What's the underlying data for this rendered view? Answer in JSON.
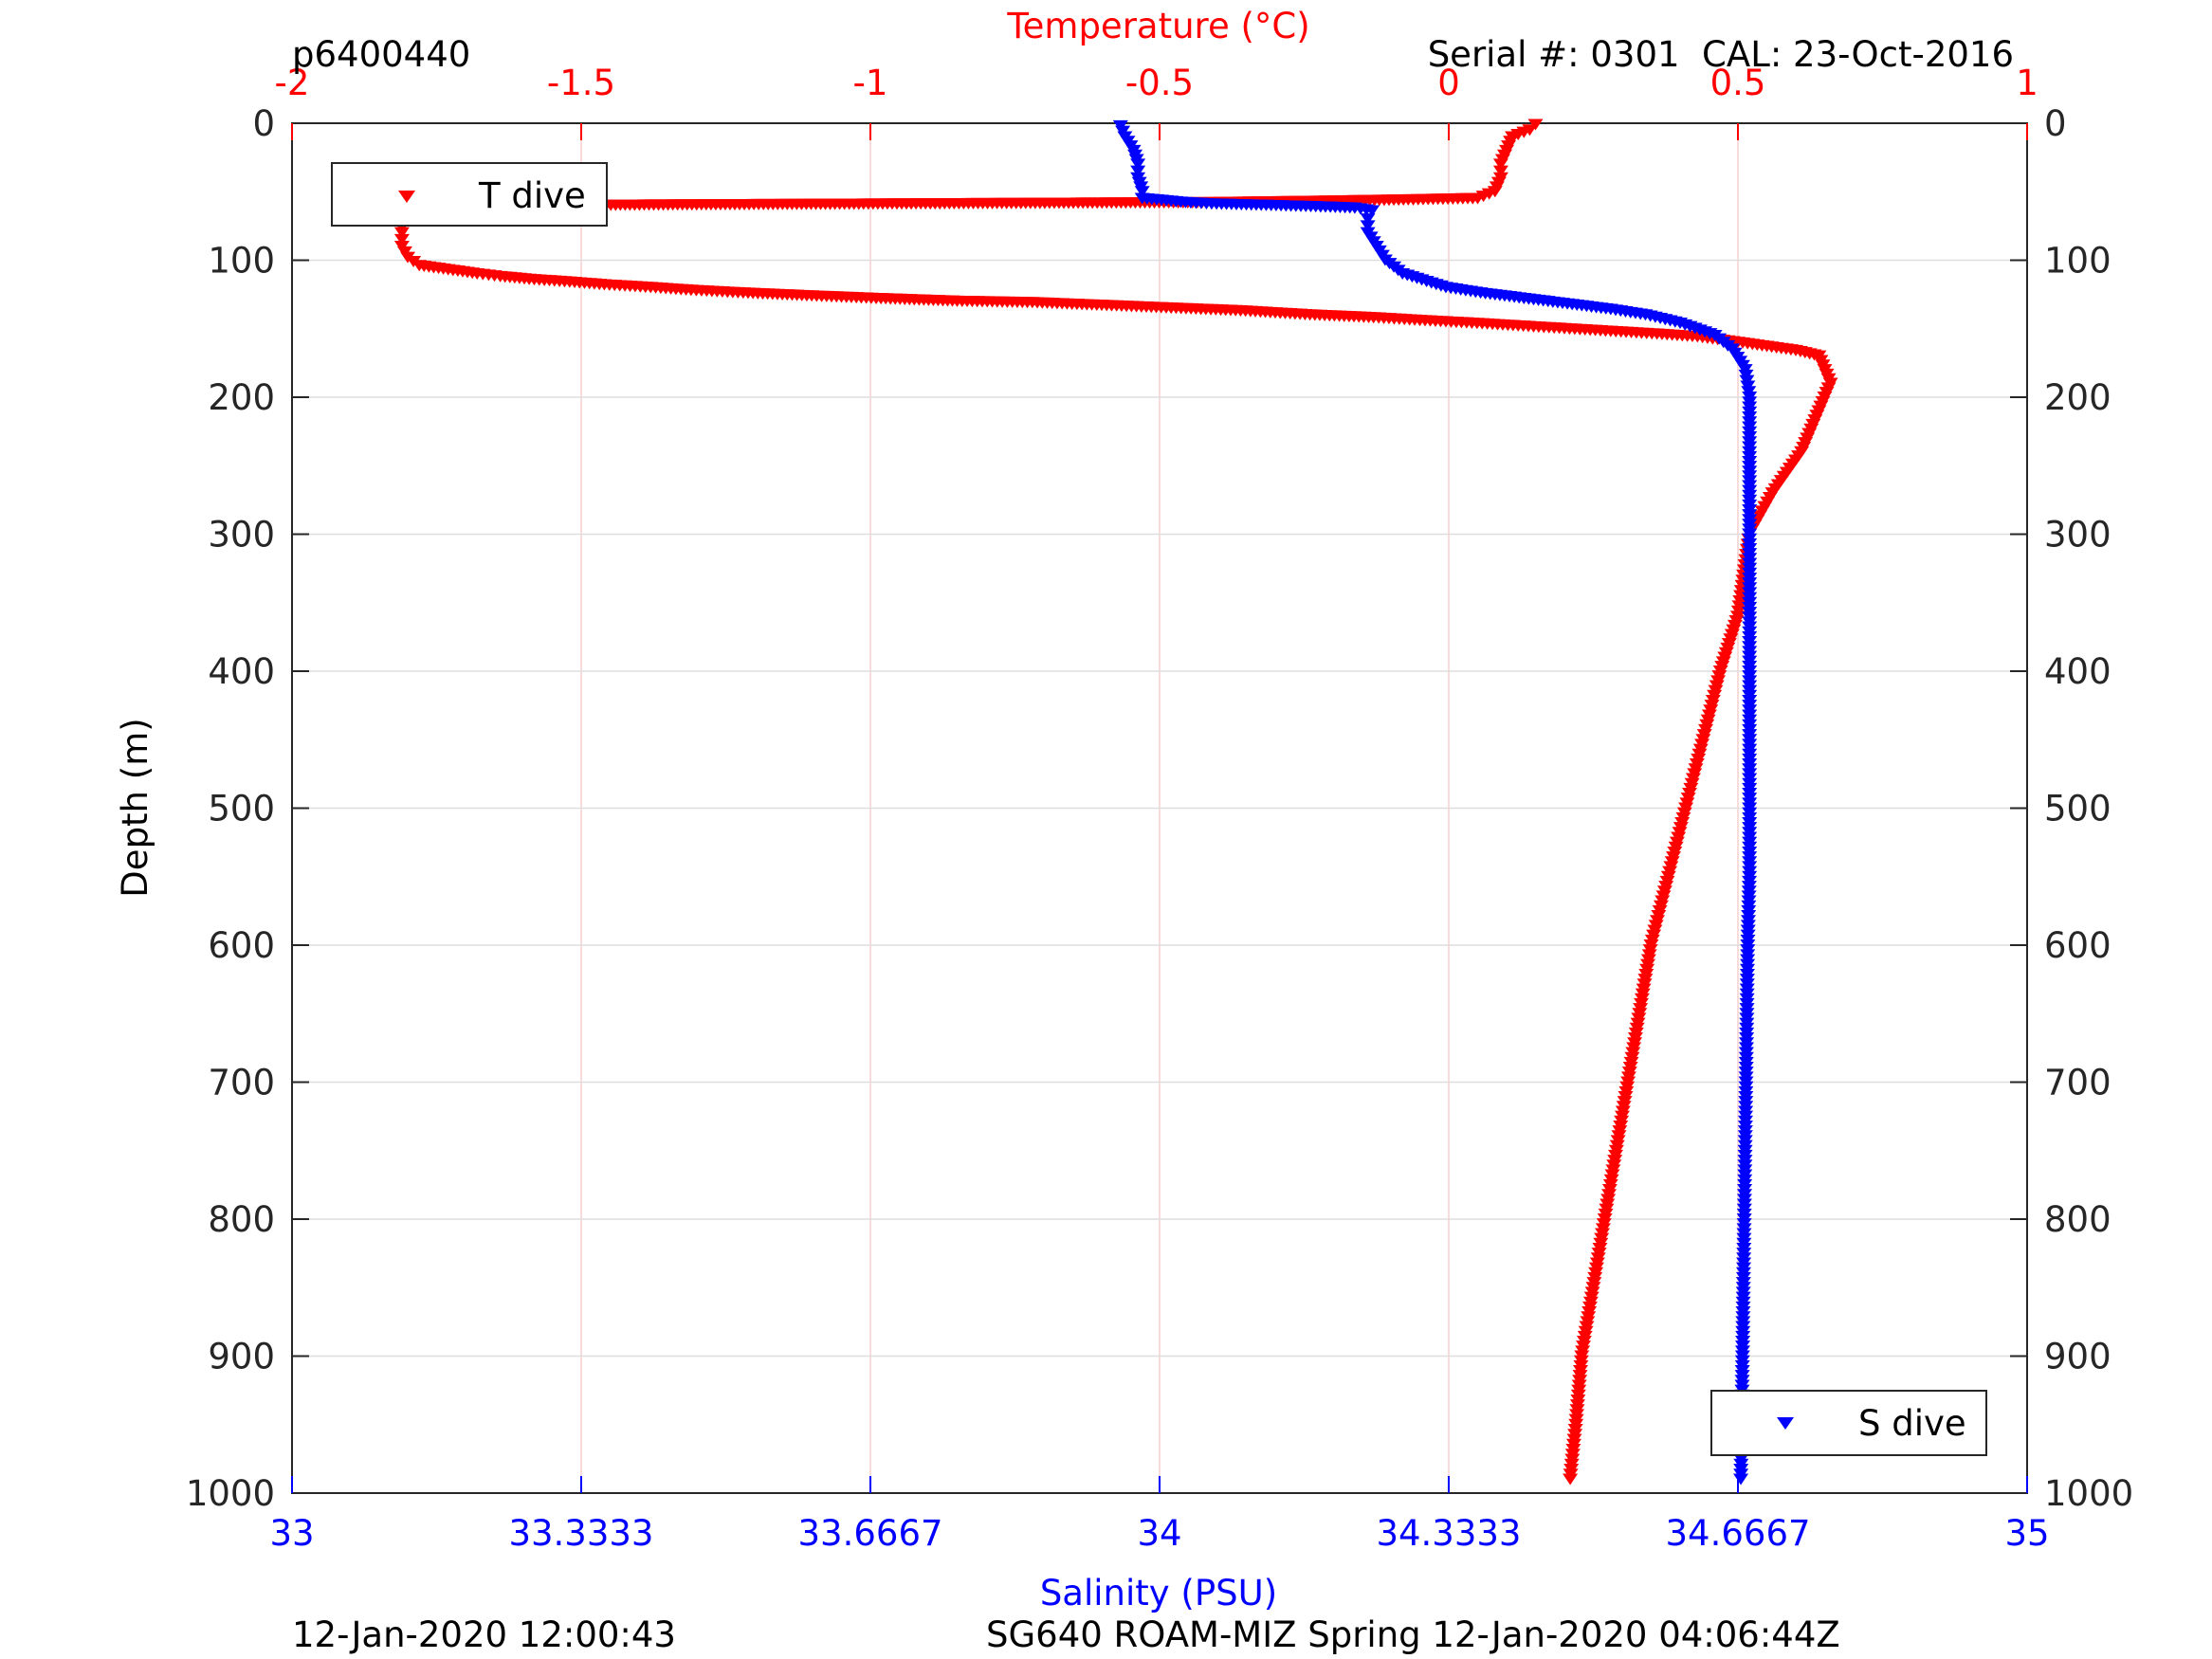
{
  "chart_data": {
    "type": "scatter",
    "header": {
      "dive_id": "p6400440",
      "serial": "Serial #: 0301  CAL: 23-Oct-2016"
    },
    "footer": {
      "left": "12-Jan-2020 12:00:43",
      "right": "SG640 ROAM-MIZ Spring 12-Jan-2020 04:06:44Z"
    },
    "y_axis": {
      "label": "Depth (m)",
      "range": [
        0,
        1000
      ],
      "reversed": true,
      "ticks": [
        "0",
        "100",
        "200",
        "300",
        "400",
        "500",
        "600",
        "700",
        "800",
        "900",
        "1000"
      ]
    },
    "x_axis_top": {
      "label": "Temperature (°C)",
      "color": "#ff0000",
      "range": [
        -2,
        1
      ],
      "ticks": [
        "-2",
        "-1.5",
        "-1",
        "-0.5",
        "0",
        "0.5",
        "1"
      ]
    },
    "x_axis_bottom": {
      "label": "Salinity (PSU)",
      "color": "#0000ff",
      "range": [
        33,
        35
      ],
      "ticks": [
        "33",
        "33.3333",
        "33.6667",
        "34",
        "34.3333",
        "34.6667",
        "35"
      ]
    },
    "grid": true,
    "legend": [
      {
        "name": "T dive",
        "color": "#ff0000",
        "marker": "triangle-down",
        "placement": "top-left"
      },
      {
        "name": "S dive",
        "color": "#0000ff",
        "marker": "triangle-down",
        "placement": "bottom-right"
      }
    ],
    "series": [
      {
        "name": "T dive",
        "axis": "top",
        "color": "#ff0000",
        "points": [
          [
            0.15,
            1
          ],
          [
            0.14,
            5
          ],
          [
            0.11,
            10
          ],
          [
            0.1,
            20
          ],
          [
            0.09,
            30
          ],
          [
            0.09,
            40
          ],
          [
            0.08,
            50
          ],
          [
            0.05,
            55
          ],
          [
            -0.07,
            56
          ],
          [
            -0.22,
            57
          ],
          [
            -0.41,
            58
          ],
          [
            -1.49,
            60
          ],
          [
            -1.65,
            60
          ],
          [
            -1.74,
            62
          ],
          [
            -1.79,
            62
          ],
          [
            -1.8,
            65
          ],
          [
            -1.81,
            72
          ],
          [
            -1.81,
            80
          ],
          [
            -1.81,
            90
          ],
          [
            -1.8,
            98
          ],
          [
            -1.78,
            104
          ],
          [
            -1.73,
            107
          ],
          [
            -1.68,
            110
          ],
          [
            -1.64,
            112
          ],
          [
            -1.59,
            114
          ],
          [
            -1.52,
            116
          ],
          [
            -1.46,
            118
          ],
          [
            -1.38,
            120
          ],
          [
            -1.31,
            122
          ],
          [
            -1.22,
            124
          ],
          [
            -1.11,
            126
          ],
          [
            -0.99,
            128
          ],
          [
            -0.85,
            130
          ],
          [
            -0.72,
            131
          ],
          [
            -0.6,
            133
          ],
          [
            -0.48,
            135
          ],
          [
            -0.36,
            137
          ],
          [
            -0.24,
            140
          ],
          [
            -0.13,
            142
          ],
          [
            -0.05,
            144
          ],
          [
            0.04,
            146
          ],
          [
            0.12,
            148
          ],
          [
            0.2,
            150
          ],
          [
            0.28,
            152
          ],
          [
            0.36,
            154
          ],
          [
            0.43,
            156
          ],
          [
            0.5,
            160
          ],
          [
            0.55,
            163
          ],
          [
            0.6,
            166
          ],
          [
            0.64,
            170
          ],
          [
            0.65,
            180
          ],
          [
            0.66,
            190
          ],
          [
            0.64,
            210
          ],
          [
            0.61,
            240
          ],
          [
            0.56,
            270
          ],
          [
            0.52,
            300
          ],
          [
            0.51,
            330
          ],
          [
            0.5,
            360
          ],
          [
            0.47,
            400
          ],
          [
            0.44,
            450
          ],
          [
            0.41,
            500
          ],
          [
            0.38,
            550
          ],
          [
            0.35,
            600
          ],
          [
            0.33,
            650
          ],
          [
            0.31,
            700
          ],
          [
            0.29,
            750
          ],
          [
            0.27,
            800
          ],
          [
            0.25,
            850
          ],
          [
            0.23,
            900
          ],
          [
            0.22,
            950
          ],
          [
            0.21,
            990
          ]
        ]
      },
      {
        "name": "S dive",
        "axis": "bottom",
        "color": "#0000ff",
        "points": [
          [
            33.955,
            2
          ],
          [
            33.96,
            10
          ],
          [
            33.97,
            20
          ],
          [
            33.975,
            30
          ],
          [
            33.975,
            40
          ],
          [
            33.98,
            50
          ],
          [
            33.98,
            55
          ],
          [
            34.03,
            58
          ],
          [
            34.06,
            59
          ],
          [
            34.18,
            61
          ],
          [
            34.225,
            62
          ],
          [
            34.245,
            64
          ],
          [
            34.24,
            70
          ],
          [
            34.24,
            80
          ],
          [
            34.25,
            90
          ],
          [
            34.26,
            100
          ],
          [
            34.28,
            110
          ],
          [
            34.33,
            120
          ],
          [
            34.37,
            124
          ],
          [
            34.42,
            128
          ],
          [
            34.47,
            132
          ],
          [
            34.52,
            136
          ],
          [
            34.56,
            140
          ],
          [
            34.6,
            146
          ],
          [
            34.64,
            155
          ],
          [
            34.66,
            165
          ],
          [
            34.675,
            180
          ],
          [
            34.68,
            200
          ],
          [
            34.68,
            240
          ],
          [
            34.68,
            300
          ],
          [
            34.68,
            350
          ],
          [
            34.68,
            400
          ],
          [
            34.68,
            450
          ],
          [
            34.68,
            500
          ],
          [
            34.68,
            550
          ],
          [
            34.678,
            600
          ],
          [
            34.677,
            650
          ],
          [
            34.676,
            700
          ],
          [
            34.675,
            750
          ],
          [
            34.674,
            800
          ],
          [
            34.673,
            850
          ],
          [
            34.672,
            900
          ],
          [
            34.671,
            950
          ],
          [
            34.67,
            990
          ]
        ]
      }
    ]
  }
}
